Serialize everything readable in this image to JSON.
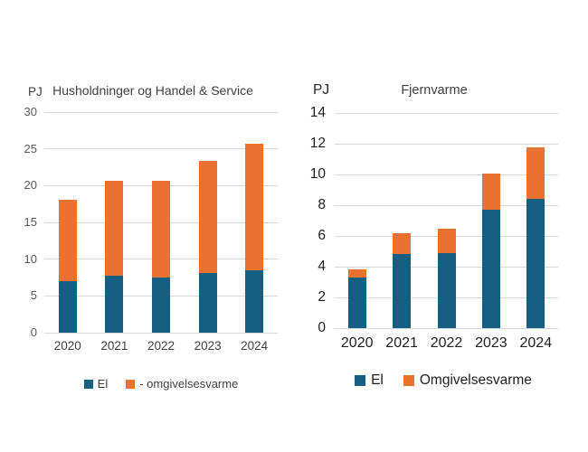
{
  "chart_data": [
    {
      "type": "bar",
      "stacked": true,
      "title": "Husholdninger og Handel & Service",
      "unit_label": "PJ",
      "categories": [
        "2020",
        "2021",
        "2022",
        "2023",
        "2024"
      ],
      "series": [
        {
          "name": "El",
          "color": "#156082",
          "values": [
            7.0,
            7.8,
            7.5,
            8.1,
            8.5
          ]
        },
        {
          "name": "- omgivelsesvarme",
          "color": "#E97132",
          "values": [
            11.1,
            12.9,
            13.2,
            15.2,
            17.2
          ]
        }
      ],
      "totals": [
        18.1,
        20.7,
        20.7,
        23.3,
        25.7
      ],
      "ylim": [
        0,
        30
      ],
      "ytick_step": 5,
      "grid": true,
      "legend_position": "bottom"
    },
    {
      "type": "bar",
      "stacked": true,
      "title": "Fjernvarme",
      "unit_label": "PJ",
      "categories": [
        "2020",
        "2021",
        "2022",
        "2023",
        "2024"
      ],
      "series": [
        {
          "name": "El",
          "color": "#156082",
          "values": [
            3.3,
            4.8,
            4.9,
            7.7,
            8.4
          ]
        },
        {
          "name": "Omgivelsesvarme",
          "color": "#E97132",
          "values": [
            0.5,
            1.4,
            1.6,
            2.35,
            3.35
          ]
        }
      ],
      "totals": [
        3.8,
        6.2,
        6.5,
        10.05,
        11.75
      ],
      "ylim": [
        0,
        14
      ],
      "ytick_step": 2,
      "grid": true,
      "legend_position": "bottom"
    }
  ],
  "colors": {
    "el": "#156082",
    "omgivelsesvarme": "#E97132",
    "gridline": "#D9D9D9",
    "text_left": "#595959",
    "text_right": "#1f1f1f"
  }
}
